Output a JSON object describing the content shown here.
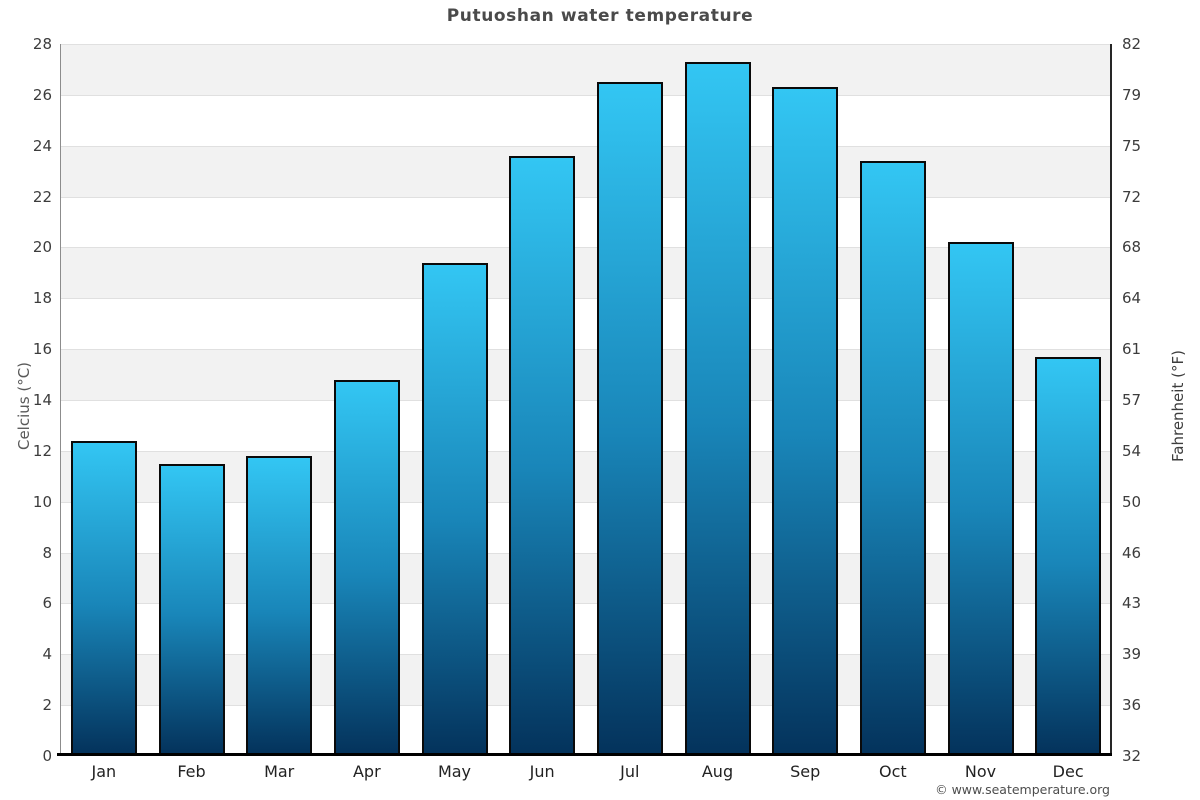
{
  "title": "Putuoshan water temperature",
  "y_axis_left": {
    "label": "Celcius (°C)",
    "ticks": [
      0,
      2,
      4,
      6,
      8,
      10,
      12,
      14,
      16,
      18,
      20,
      22,
      24,
      26,
      28
    ]
  },
  "y_axis_right": {
    "label": "Fahrenheit (°F)",
    "ticks": [
      32,
      36,
      39,
      43,
      46,
      50,
      54,
      57,
      61,
      64,
      68,
      72,
      75,
      79,
      82
    ]
  },
  "x_axis": {
    "months": [
      "Jan",
      "Feb",
      "Mar",
      "Apr",
      "May",
      "Jun",
      "Jul",
      "Aug",
      "Sep",
      "Oct",
      "Nov",
      "Dec"
    ]
  },
  "footer": {
    "copyright": "© www.seatemperature.org"
  },
  "chart_data": {
    "type": "bar",
    "title": "Putuoshan water temperature",
    "categories": [
      "Jan",
      "Feb",
      "Mar",
      "Apr",
      "May",
      "Jun",
      "Jul",
      "Aug",
      "Sep",
      "Oct",
      "Nov",
      "Dec"
    ],
    "values": [
      12.4,
      11.5,
      11.8,
      14.8,
      19.4,
      23.6,
      26.5,
      27.3,
      26.3,
      23.4,
      20.2,
      15.7
    ],
    "xlabel": "",
    "ylabel": "Celcius (°C)",
    "ylabel_right": "Fahrenheit (°F)",
    "ylim": [
      0,
      28
    ],
    "grid": "horizontal-bands",
    "legend": "none",
    "colors": {
      "bar_gradient_top": "#33c6f3",
      "bar_gradient_mid": "#1986b9",
      "bar_gradient_bottom": "#04335c",
      "bar_border": "#0a0a0a",
      "band_gray": "#f2f2f2",
      "band_white": "#ffffff",
      "gridline": "#e0e0e0",
      "title_text": "#4a4a4a",
      "tick_text": "#3c3c3c"
    }
  }
}
